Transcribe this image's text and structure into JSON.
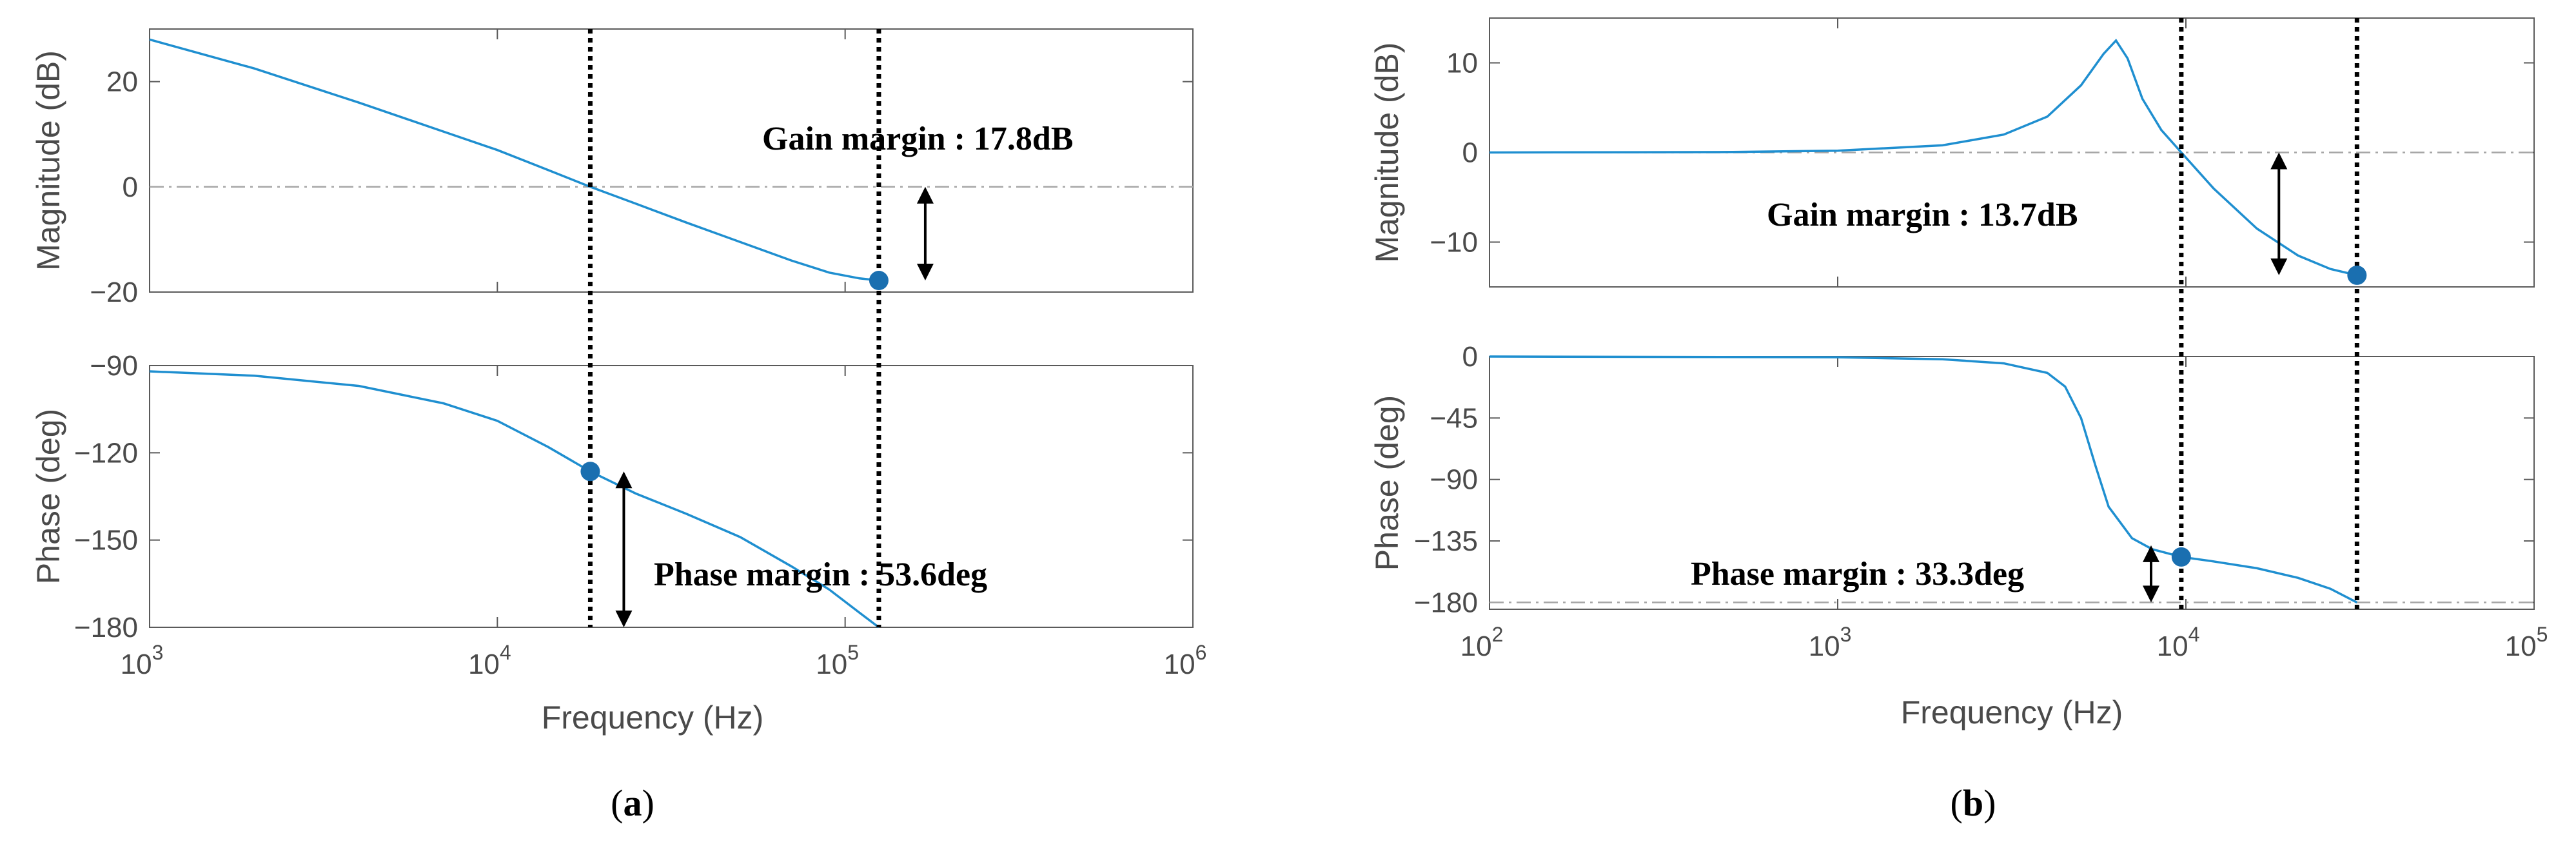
{
  "colors": {
    "curve": "#1f8fd0",
    "marker": "#1a6fb0",
    "axis": "#5a5a5a",
    "refline": "#a6a6a6",
    "guide": "#000000"
  },
  "chart_data": [
    {
      "id": "a",
      "panel_label": "a",
      "type": "line",
      "x_scale": "log",
      "xlabel": "Frequency (Hz)",
      "xlim": [
        1000,
        1000000
      ],
      "x_ticks": [
        {
          "v": 1000,
          "e": "3"
        },
        {
          "v": 10000,
          "e": "4"
        },
        {
          "v": 100000,
          "e": "5"
        },
        {
          "v": 1000000,
          "e": "6"
        }
      ],
      "magnitude": {
        "ylabel": "Magnitude (dB)",
        "ylim": [
          -20,
          30
        ],
        "yticks": [
          20,
          0,
          -20
        ],
        "reference_line": 0,
        "x": [
          1000,
          2000,
          4000,
          7000,
          10000,
          14000,
          18500,
          25000,
          35000,
          50000,
          70000,
          90000,
          110000,
          125000
        ],
        "y": [
          28,
          22.5,
          16,
          10.5,
          7,
          3.2,
          0,
          -3.2,
          -6.8,
          -10.5,
          -14,
          -16.3,
          -17.4,
          -17.8
        ]
      },
      "phase": {
        "ylabel": "Phase (deg)",
        "ylim": [
          -180,
          -90
        ],
        "yticks": [
          -90,
          -120,
          -150,
          -180
        ],
        "x": [
          1000,
          2000,
          4000,
          7000,
          10000,
          14000,
          18500,
          25000,
          35000,
          50000,
          70000,
          90000,
          110000,
          125000
        ],
        "y": [
          -92,
          -93.5,
          -97,
          -103,
          -109,
          -118,
          -126.4,
          -134,
          -141,
          -149,
          -159,
          -167,
          -175,
          -180
        ]
      },
      "crossover_frequencies_hz": [
        18500,
        125000
      ],
      "gain_margin": {
        "marker_x": 125000,
        "marker_y": -17.8,
        "label": "Gain margin : 17.8dB"
      },
      "phase_margin": {
        "marker_x": 18500,
        "marker_y": -126.4,
        "label": "Phase margin : 53.6deg"
      }
    },
    {
      "id": "b",
      "panel_label": "b",
      "type": "line",
      "x_scale": "log",
      "xlabel": "Frequency (Hz)",
      "xlim": [
        100,
        100000
      ],
      "x_ticks": [
        {
          "v": 100,
          "e": "2"
        },
        {
          "v": 1000,
          "e": "3"
        },
        {
          "v": 10000,
          "e": "4"
        },
        {
          "v": 100000,
          "e": "5"
        }
      ],
      "magnitude": {
        "ylabel": "Magnitude (dB)",
        "ylim": [
          -15,
          15
        ],
        "yticks": [
          10,
          0,
          -10
        ],
        "reference_line": 0,
        "x": [
          100,
          500,
          1000,
          2000,
          3000,
          4000,
          5000,
          5800,
          6300,
          6800,
          7500,
          8500,
          9700,
          12000,
          16000,
          21000,
          26000,
          31000
        ],
        "y": [
          0,
          0.05,
          0.2,
          0.8,
          2,
          4,
          7.5,
          11,
          12.5,
          10.5,
          6,
          2.5,
          0,
          -4,
          -8.5,
          -11.5,
          -13,
          -13.7
        ]
      },
      "phase": {
        "ylabel": "Phase (deg)",
        "ylim": [
          -185,
          0
        ],
        "yticks": [
          0,
          -45,
          -90,
          -135,
          -180
        ],
        "reference_line": -180,
        "x": [
          100,
          1000,
          2000,
          3000,
          4000,
          4500,
          5000,
          5500,
          6000,
          7000,
          8000,
          9700,
          12000,
          16000,
          21000,
          26000,
          31000
        ],
        "y": [
          0,
          -0.5,
          -2,
          -5,
          -12,
          -22,
          -45,
          -80,
          -110,
          -133,
          -141,
          -146.7,
          -150,
          -155,
          -162,
          -170,
          -180
        ]
      },
      "crossover_frequencies_hz": [
        9700,
        31000
      ],
      "gain_margin": {
        "marker_x": 31000,
        "marker_y": -13.7,
        "label": "Gain margin : 13.7dB"
      },
      "phase_margin": {
        "marker_x": 9700,
        "marker_y": -146.7,
        "label": "Phase margin : 33.3deg"
      }
    }
  ]
}
